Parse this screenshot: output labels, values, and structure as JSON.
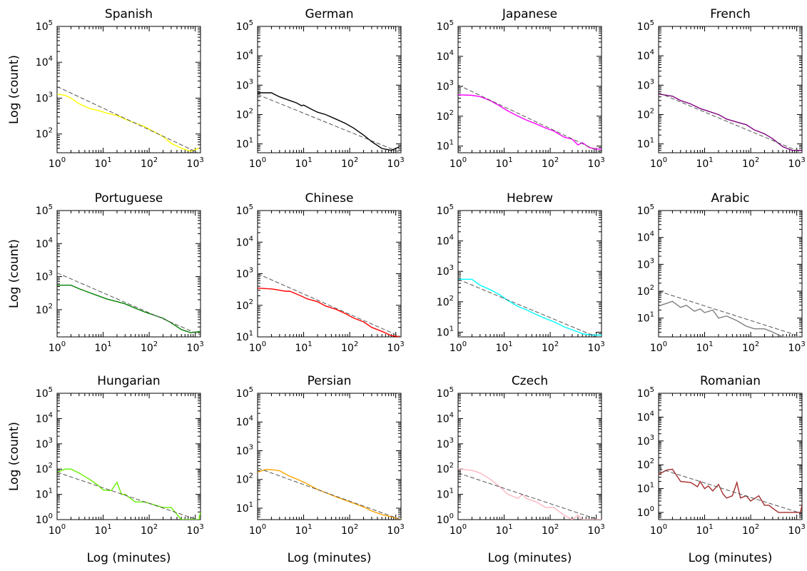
{
  "figure": {
    "ylabel": "Log (count)",
    "xlabel": "Log (minutes)"
  },
  "chart_data": [
    {
      "type": "line",
      "title": "Spanish",
      "color": "#ffff00",
      "xscale": "log",
      "yscale": "log",
      "xlim": [
        1,
        1300
      ],
      "ylim": [
        30,
        100000
      ],
      "yticks": [
        100,
        1000,
        10000,
        100000
      ],
      "ytick_labels": [
        "10^2",
        "10^3",
        "10^4",
        "10^5"
      ],
      "series": [
        {
          "x": [
            1,
            1.5,
            2,
            3,
            5,
            8,
            12,
            20,
            30,
            50,
            80,
            120,
            200,
            300,
            500,
            800,
            1200
          ],
          "y": [
            1300,
            1200,
            1000,
            700,
            520,
            450,
            380,
            330,
            260,
            200,
            160,
            120,
            85,
            55,
            40,
            33,
            40
          ]
        },
        {
          "style": "dashed",
          "x": [
            1,
            1300
          ],
          "y": [
            2100,
            28
          ]
        }
      ]
    },
    {
      "type": "line",
      "title": "German",
      "color": "#000000",
      "xscale": "log",
      "yscale": "log",
      "xlim": [
        1,
        1300
      ],
      "ylim": [
        5,
        100000
      ],
      "yticks": [
        10,
        100,
        1000,
        10000,
        100000
      ],
      "ytick_labels": [
        "10^1",
        "10^2",
        "10^3",
        "10^4",
        "10^5"
      ],
      "series": [
        {
          "x": [
            1,
            2,
            3,
            5,
            7,
            9,
            10,
            15,
            20,
            30,
            50,
            80,
            120,
            200,
            300,
            500,
            800,
            1200
          ],
          "y": [
            550,
            550,
            400,
            300,
            250,
            200,
            210,
            150,
            120,
            100,
            70,
            50,
            35,
            20,
            12,
            7,
            6,
            8
          ]
        },
        {
          "style": "dashed",
          "x": [
            1,
            1300
          ],
          "y": [
            480,
            5
          ]
        }
      ]
    },
    {
      "type": "line",
      "title": "Japanese",
      "color": "#ff00ff",
      "xscale": "log",
      "yscale": "log",
      "xlim": [
        1,
        1300
      ],
      "ylim": [
        6,
        100000
      ],
      "yticks": [
        10,
        100,
        1000,
        10000,
        100000
      ],
      "ytick_labels": [
        "10^1",
        "10^2",
        "10^3",
        "10^4",
        "10^5"
      ],
      "series": [
        {
          "x": [
            1,
            2,
            3,
            5,
            8,
            12,
            20,
            30,
            50,
            80,
            120,
            200,
            300,
            400,
            500,
            700,
            1000,
            1300
          ],
          "y": [
            520,
            500,
            450,
            330,
            220,
            150,
            100,
            75,
            55,
            40,
            32,
            20,
            17,
            11,
            13,
            9,
            8,
            8
          ]
        },
        {
          "style": "dashed",
          "x": [
            1,
            1300
          ],
          "y": [
            1100,
            6
          ]
        }
      ]
    },
    {
      "type": "line",
      "title": "French",
      "color": "#800080",
      "xscale": "log",
      "yscale": "log",
      "xlim": [
        1,
        1300
      ],
      "ylim": [
        5,
        100000
      ],
      "yticks": [
        10,
        100,
        1000,
        10000,
        100000
      ],
      "ytick_labels": [
        "10^1",
        "10^2",
        "10^3",
        "10^4",
        "10^5"
      ],
      "series": [
        {
          "x": [
            1,
            2,
            3,
            5,
            8,
            12,
            20,
            30,
            50,
            80,
            120,
            200,
            300,
            500,
            800,
            1300
          ],
          "y": [
            500,
            420,
            300,
            230,
            160,
            130,
            100,
            70,
            55,
            45,
            30,
            22,
            15,
            8,
            6,
            6
          ]
        },
        {
          "style": "dashed",
          "x": [
            1,
            1300
          ],
          "y": [
            550,
            5
          ]
        }
      ]
    },
    {
      "type": "line",
      "title": "Portuguese",
      "color": "#008000",
      "xscale": "log",
      "yscale": "log",
      "xlim": [
        1,
        1300
      ],
      "ylim": [
        15,
        100000
      ],
      "yticks": [
        100,
        1000,
        10000,
        100000
      ],
      "ytick_labels": [
        "10^2",
        "10^3",
        "10^4",
        "10^5"
      ],
      "series": [
        {
          "x": [
            1,
            2,
            3,
            5,
            8,
            12,
            20,
            30,
            50,
            80,
            120,
            200,
            300,
            500,
            800,
            1300
          ],
          "y": [
            550,
            550,
            430,
            330,
            260,
            210,
            175,
            150,
            110,
            85,
            70,
            55,
            40,
            25,
            20,
            22
          ]
        },
        {
          "style": "dashed",
          "x": [
            1,
            1300
          ],
          "y": [
            1300,
            17
          ]
        }
      ]
    },
    {
      "type": "line",
      "title": "Chinese",
      "color": "#ff0000",
      "xscale": "log",
      "yscale": "log",
      "xlim": [
        1,
        1300
      ],
      "ylim": [
        10,
        100000
      ],
      "yticks": [
        10,
        100,
        1000,
        10000,
        100000
      ],
      "ytick_labels": [
        "10^1",
        "10^2",
        "10^3",
        "10^4",
        "10^5"
      ],
      "series": [
        {
          "x": [
            1,
            2,
            3,
            4,
            5,
            8,
            12,
            20,
            30,
            50,
            80,
            120,
            200,
            300,
            500,
            800,
            1300
          ],
          "y": [
            350,
            330,
            300,
            280,
            280,
            210,
            160,
            130,
            95,
            75,
            55,
            40,
            30,
            20,
            15,
            11,
            10
          ]
        },
        {
          "style": "dashed",
          "x": [
            1,
            1300
          ],
          "y": [
            1000,
            10
          ]
        }
      ]
    },
    {
      "type": "line",
      "title": "Hebrew",
      "color": "#00ffff",
      "xscale": "log",
      "yscale": "log",
      "xlim": [
        1,
        1300
      ],
      "ylim": [
        7,
        100000
      ],
      "yticks": [
        10,
        100,
        1000,
        10000,
        100000
      ],
      "ytick_labels": [
        "10^1",
        "10^2",
        "10^3",
        "10^4",
        "10^5"
      ],
      "series": [
        {
          "x": [
            1,
            2,
            3,
            5,
            8,
            12,
            20,
            30,
            50,
            80,
            120,
            200,
            300,
            500,
            800,
            1300
          ],
          "y": [
            550,
            550,
            350,
            250,
            170,
            110,
            70,
            55,
            38,
            28,
            22,
            15,
            12,
            9,
            8,
            8
          ]
        },
        {
          "style": "dashed",
          "x": [
            1,
            1300
          ],
          "y": [
            550,
            6
          ]
        }
      ]
    },
    {
      "type": "line",
      "title": "Arabic",
      "color": "#808080",
      "xscale": "log",
      "yscale": "log",
      "xlim": [
        1,
        1300
      ],
      "ylim": [
        2,
        100000
      ],
      "yticks": [
        10,
        100,
        1000,
        10000,
        100000
      ],
      "ytick_labels": [
        "10^1",
        "10^2",
        "10^3",
        "10^4",
        "10^5"
      ],
      "series": [
        {
          "x": [
            1,
            2,
            3,
            4,
            6,
            8,
            10,
            15,
            20,
            30,
            50,
            80,
            120,
            200,
            300,
            500,
            800,
            1300
          ],
          "y": [
            28,
            42,
            25,
            30,
            18,
            22,
            16,
            20,
            10,
            12,
            8,
            5,
            4,
            4,
            3,
            2,
            2,
            2
          ]
        },
        {
          "style": "dashed",
          "x": [
            1,
            1300
          ],
          "y": [
            100,
            2
          ]
        }
      ]
    },
    {
      "type": "line",
      "title": "Hungarian",
      "color": "#66ee00",
      "xscale": "log",
      "yscale": "log",
      "xlim": [
        1,
        1300
      ],
      "ylim": [
        1,
        100000
      ],
      "yticks": [
        1,
        10,
        100,
        1000,
        10000,
        100000
      ],
      "ytick_labels": [
        "10^0",
        "10^1",
        "10^2",
        "10^3",
        "10^4",
        "10^5"
      ],
      "series": [
        {
          "x": [
            1,
            1.5,
            2,
            3,
            5,
            8,
            10,
            15,
            20,
            25,
            30,
            50,
            80,
            120,
            200,
            300,
            500,
            800,
            1200,
            1300
          ],
          "y": [
            75,
            100,
            100,
            70,
            40,
            22,
            15,
            14,
            30,
            10,
            10,
            5,
            5,
            4,
            3,
            3,
            1,
            1,
            1,
            2
          ]
        },
        {
          "style": "dashed",
          "x": [
            1,
            1300
          ],
          "y": [
            75,
            0.9
          ]
        }
      ]
    },
    {
      "type": "line",
      "title": "Persian",
      "color": "#ffa500",
      "xscale": "log",
      "yscale": "log",
      "xlim": [
        1,
        1300
      ],
      "ylim": [
        4,
        100000
      ],
      "yticks": [
        10,
        100,
        1000,
        10000,
        100000
      ],
      "ytick_labels": [
        "10^1",
        "10^2",
        "10^3",
        "10^4",
        "10^5"
      ],
      "series": [
        {
          "x": [
            1,
            1.5,
            2,
            3,
            5,
            8,
            12,
            20,
            30,
            50,
            80,
            120,
            200,
            300,
            500,
            800,
            1300
          ],
          "y": [
            180,
            220,
            220,
            200,
            130,
            95,
            70,
            45,
            35,
            25,
            19,
            15,
            11,
            8,
            6,
            5,
            4
          ]
        },
        {
          "style": "dashed",
          "x": [
            1,
            1300
          ],
          "y": [
            250,
            4
          ]
        }
      ]
    },
    {
      "type": "line",
      "title": "Czech",
      "color": "#ffb6c1",
      "xscale": "log",
      "yscale": "log",
      "xlim": [
        1,
        1300
      ],
      "ylim": [
        1,
        100000
      ],
      "yticks": [
        1,
        10,
        100,
        1000,
        10000,
        100000
      ],
      "ytick_labels": [
        "10^0",
        "10^1",
        "10^2",
        "10^3",
        "10^4",
        "10^5"
      ],
      "series": [
        {
          "x": [
            1,
            2,
            3,
            5,
            8,
            12,
            20,
            25,
            30,
            50,
            80,
            120,
            200,
            300,
            400,
            500,
            800,
            1300
          ],
          "y": [
            100,
            90,
            70,
            40,
            20,
            10,
            7,
            10,
            7,
            5,
            3,
            3,
            1.5,
            1,
            1.5,
            1,
            1,
            1
          ]
        },
        {
          "style": "dashed",
          "x": [
            1,
            1300
          ],
          "y": [
            70,
            0.9
          ]
        }
      ]
    },
    {
      "type": "line",
      "title": "Romanian",
      "color": "#a52a2a",
      "xscale": "log",
      "yscale": "log",
      "xlim": [
        1,
        1300
      ],
      "ylim": [
        0.5,
        100000
      ],
      "yticks": [
        1,
        10,
        100,
        1000,
        10000,
        100000
      ],
      "ytick_labels": [
        "10^0",
        "10^1",
        "10^2",
        "10^3",
        "10^4",
        "10^5"
      ],
      "series": [
        {
          "x": [
            1,
            1.5,
            2,
            3,
            5,
            7,
            8,
            10,
            12,
            15,
            20,
            25,
            30,
            40,
            50,
            60,
            80,
            100,
            150,
            200,
            250,
            300,
            400,
            500,
            700,
            1000,
            1200,
            1300
          ],
          "y": [
            40,
            60,
            65,
            20,
            18,
            12,
            20,
            10,
            13,
            8,
            15,
            6,
            4,
            5,
            18,
            4,
            5,
            3,
            5,
            2,
            2,
            1.5,
            1,
            1,
            1,
            1,
            1,
            2
          ]
        },
        {
          "style": "dashed",
          "x": [
            1,
            1300
          ],
          "y": [
            70,
            0.9
          ]
        }
      ]
    }
  ]
}
